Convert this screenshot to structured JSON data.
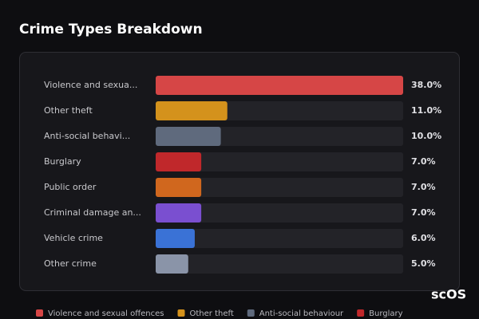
{
  "chart_data": {
    "type": "bar",
    "orientation": "horizontal",
    "title": "Crime Types Breakdown",
    "categories": [
      "Violence and sexua...",
      "Other theft",
      "Anti-social behavi...",
      "Burglary",
      "Public order",
      "Criminal damage an...",
      "Vehicle crime",
      "Other crime"
    ],
    "values": [
      38,
      11,
      10,
      7,
      7,
      7,
      6,
      5
    ],
    "value_labels": [
      "38.0%",
      "11.0%",
      "10.0%",
      "7.0%",
      "7.0%",
      "7.0%",
      "6.0%",
      "5.0%"
    ],
    "colors": [
      "#d64646",
      "#d4921c",
      "#5f6a7d",
      "#c0282b",
      "#d0671e",
      "#7a4fd0",
      "#3a72d6",
      "#8a94a8"
    ],
    "xlim": [
      0,
      38
    ],
    "legend": [
      "Violence and sexual offences",
      "Other theft",
      "Anti-social behaviour",
      "Burglary"
    ],
    "watermark": "scOS"
  }
}
